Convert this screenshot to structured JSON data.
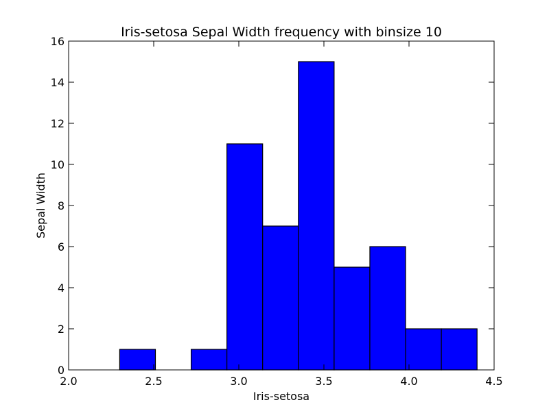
{
  "chart_data": {
    "type": "bar",
    "title": "Iris-setosa Sepal Width frequency with binsize 10",
    "xlabel": "Iris-setosa",
    "ylabel": "Sepal Width",
    "xlim": [
      2.0,
      4.5
    ],
    "ylim": [
      0,
      16
    ],
    "xticks": [
      "2.0",
      "2.5",
      "3.0",
      "3.5",
      "4.0",
      "4.5"
    ],
    "yticks": [
      "0",
      "2",
      "4",
      "6",
      "8",
      "10",
      "12",
      "14",
      "16"
    ],
    "bin_edges": [
      2.3,
      2.51,
      2.72,
      2.93,
      3.14,
      3.35,
      3.56,
      3.77,
      3.98,
      4.19,
      4.4
    ],
    "counts": [
      1,
      0,
      1,
      11,
      7,
      15,
      5,
      6,
      2,
      2
    ],
    "bar_color": "#0000ff",
    "edge_color": "#000000",
    "grid": false,
    "legend": "none"
  }
}
